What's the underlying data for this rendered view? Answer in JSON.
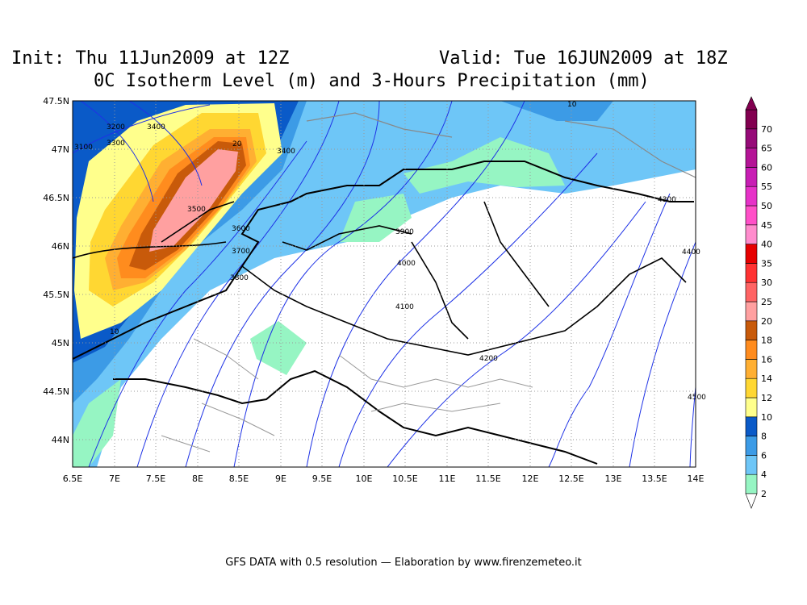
{
  "header": {
    "init": "Init: Thu 11Jun2009 at 12Z",
    "valid": "Valid: Tue 16JUN2009 at 18Z",
    "title": "0C Isotherm Level (m) and 3-Hours Precipitation (mm)"
  },
  "axes": {
    "lon_ticks": [
      "6.5E",
      "7E",
      "7.5E",
      "8E",
      "8.5E",
      "9E",
      "9.5E",
      "10E",
      "10.5E",
      "11E",
      "11.5E",
      "12E",
      "12.5E",
      "13E",
      "13.5E",
      "14E"
    ],
    "lat_ticks": [
      "47.5N",
      "47N",
      "46.5N",
      "46N",
      "45.5N",
      "45N",
      "44.5N",
      "44N"
    ]
  },
  "colorbar": {
    "levels": [
      "2",
      "4",
      "6",
      "8",
      "10",
      "12",
      "14",
      "16",
      "18",
      "20",
      "25",
      "30",
      "35",
      "40",
      "45",
      "50",
      "55",
      "60",
      "65",
      "70"
    ],
    "colors": [
      "#96f5c3",
      "#6ec6f7",
      "#3c9be6",
      "#0a5ac8",
      "#ffff8c",
      "#ffd732",
      "#ffaf32",
      "#ff8c1e",
      "#c85a0a",
      "#ffa0a0",
      "#ff6464",
      "#ff3232",
      "#e60000",
      "#ff8ccd",
      "#ff50c8",
      "#e632c8",
      "#c81eb4",
      "#b41496",
      "#960a78",
      "#820050"
    ]
  },
  "contour_labels": [
    "3100",
    "3200",
    "3300",
    "3400",
    "3500",
    "3600",
    "3700",
    "3800",
    "3400",
    "3900",
    "4000",
    "4100",
    "4200",
    "4300",
    "4400",
    "4500",
    "10",
    "20"
  ],
  "footer": "GFS DATA with 0.5 resolution — Elaboration by www.firenzemeteo.it"
}
